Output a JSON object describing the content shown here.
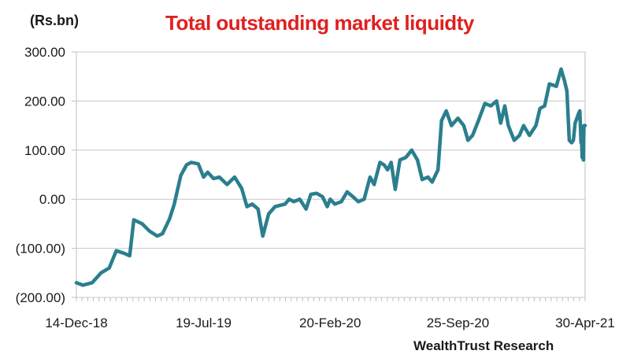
{
  "chart_data": {
    "type": "line",
    "title": "Total outstanding market liquidty",
    "ylabel": "(Rs.bn)",
    "source": "WealthTrust Research",
    "ylim": [
      -200,
      300
    ],
    "y_ticks": [
      "300.00",
      "200.00",
      "100.00",
      "0.00",
      "(100.00)",
      "(200.00)"
    ],
    "y_tick_values": [
      300,
      200,
      100,
      0,
      -100,
      -200
    ],
    "x_ticks": [
      "14-Dec-18",
      "19-Jul-19",
      "20-Feb-20",
      "25-Sep-20",
      "30-Apr-21"
    ],
    "x_tick_values": [
      "2018-12-14",
      "2019-07-19",
      "2020-02-20",
      "2020-09-25",
      "2021-04-30"
    ],
    "x_range": [
      "2018-12-14",
      "2021-04-30"
    ],
    "grid": true,
    "line_color": "#2a7f8e",
    "series": [
      {
        "points": [
          [
            "2018-12-14",
            -170
          ],
          [
            "2018-12-25",
            -175
          ],
          [
            "2019-01-10",
            -170
          ],
          [
            "2019-01-25",
            -150
          ],
          [
            "2019-02-08",
            -140
          ],
          [
            "2019-02-20",
            -105
          ],
          [
            "2019-03-05",
            -110
          ],
          [
            "2019-03-15",
            -115
          ],
          [
            "2019-03-22",
            -42
          ],
          [
            "2019-04-05",
            -50
          ],
          [
            "2019-04-18",
            -65
          ],
          [
            "2019-05-01",
            -75
          ],
          [
            "2019-05-10",
            -70
          ],
          [
            "2019-05-22",
            -40
          ],
          [
            "2019-05-30",
            -10
          ],
          [
            "2019-06-10",
            48
          ],
          [
            "2019-06-20",
            70
          ],
          [
            "2019-06-28",
            75
          ],
          [
            "2019-07-10",
            72
          ],
          [
            "2019-07-19",
            45
          ],
          [
            "2019-07-26",
            55
          ],
          [
            "2019-08-05",
            42
          ],
          [
            "2019-08-15",
            45
          ],
          [
            "2019-08-28",
            30
          ],
          [
            "2019-09-10",
            45
          ],
          [
            "2019-09-22",
            22
          ],
          [
            "2019-10-01",
            -15
          ],
          [
            "2019-10-10",
            -10
          ],
          [
            "2019-10-20",
            -20
          ],
          [
            "2019-10-28",
            -75
          ],
          [
            "2019-11-07",
            -30
          ],
          [
            "2019-11-18",
            -15
          ],
          [
            "2019-12-05",
            -10
          ],
          [
            "2019-12-12",
            0
          ],
          [
            "2019-12-20",
            -5
          ],
          [
            "2019-12-30",
            0
          ],
          [
            "2020-01-10",
            -20
          ],
          [
            "2020-01-18",
            10
          ],
          [
            "2020-01-28",
            12
          ],
          [
            "2020-02-07",
            5
          ],
          [
            "2020-02-15",
            -15
          ],
          [
            "2020-02-20",
            0
          ],
          [
            "2020-02-28",
            -10
          ],
          [
            "2020-03-10",
            -5
          ],
          [
            "2020-03-20",
            15
          ],
          [
            "2020-03-30",
            5
          ],
          [
            "2020-04-08",
            -5
          ],
          [
            "2020-04-18",
            0
          ],
          [
            "2020-04-28",
            45
          ],
          [
            "2020-05-05",
            30
          ],
          [
            "2020-05-15",
            75
          ],
          [
            "2020-05-22",
            70
          ],
          [
            "2020-05-28",
            60
          ],
          [
            "2020-06-03",
            75
          ],
          [
            "2020-06-10",
            20
          ],
          [
            "2020-06-18",
            80
          ],
          [
            "2020-06-28",
            85
          ],
          [
            "2020-07-08",
            100
          ],
          [
            "2020-07-18",
            80
          ],
          [
            "2020-07-26",
            40
          ],
          [
            "2020-08-05",
            45
          ],
          [
            "2020-08-12",
            35
          ],
          [
            "2020-08-22",
            60
          ],
          [
            "2020-08-28",
            160
          ],
          [
            "2020-09-05",
            180
          ],
          [
            "2020-09-14",
            150
          ],
          [
            "2020-09-25",
            165
          ],
          [
            "2020-10-05",
            150
          ],
          [
            "2020-10-12",
            120
          ],
          [
            "2020-10-20",
            130
          ],
          [
            "2020-10-30",
            160
          ],
          [
            "2020-11-10",
            195
          ],
          [
            "2020-11-20",
            190
          ],
          [
            "2020-11-30",
            200
          ],
          [
            "2020-12-07",
            155
          ],
          [
            "2020-12-14",
            190
          ],
          [
            "2020-12-20",
            150
          ],
          [
            "2020-12-30",
            120
          ],
          [
            "2021-01-08",
            130
          ],
          [
            "2021-01-15",
            150
          ],
          [
            "2021-01-25",
            130
          ],
          [
            "2021-02-05",
            150
          ],
          [
            "2021-02-12",
            185
          ],
          [
            "2021-02-20",
            190
          ],
          [
            "2021-02-28",
            235
          ],
          [
            "2021-03-07",
            232
          ],
          [
            "2021-03-12",
            230
          ],
          [
            "2021-03-20",
            265
          ],
          [
            "2021-03-26",
            240
          ],
          [
            "2021-03-30",
            220
          ],
          [
            "2021-04-03",
            120
          ],
          [
            "2021-04-07",
            115
          ],
          [
            "2021-04-10",
            120
          ],
          [
            "2021-04-13",
            155
          ],
          [
            "2021-04-16",
            165
          ],
          [
            "2021-04-19",
            175
          ],
          [
            "2021-04-21",
            180
          ],
          [
            "2021-04-23",
            115
          ],
          [
            "2021-04-24",
            125
          ],
          [
            "2021-04-25",
            85
          ],
          [
            "2021-04-26",
            100
          ],
          [
            "2021-04-27",
            80
          ],
          [
            "2021-04-28",
            150
          ],
          [
            "2021-04-30",
            150
          ]
        ]
      }
    ]
  }
}
